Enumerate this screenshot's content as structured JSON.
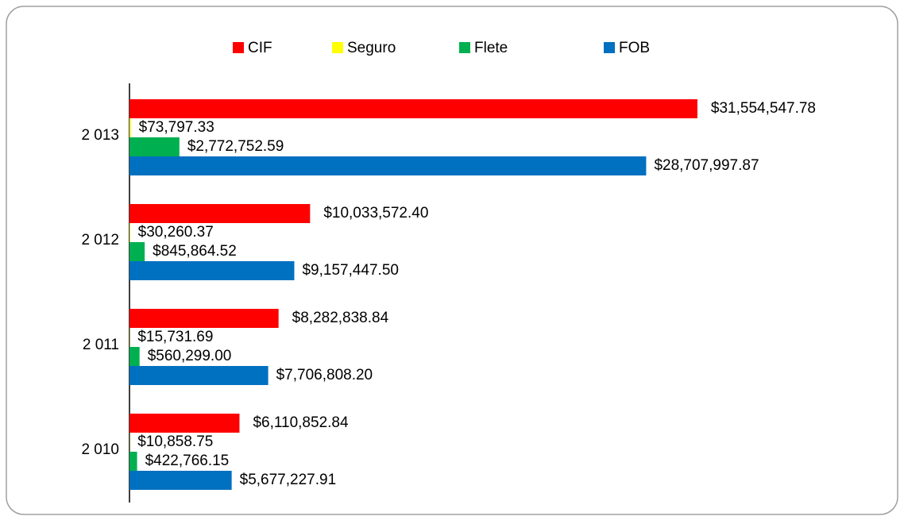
{
  "chart_data": {
    "type": "barh",
    "categories": [
      "2 013",
      "2 012",
      "2 011",
      "2 010"
    ],
    "series": [
      {
        "name": "CIF",
        "color": "#ff0000",
        "values": [
          31554547.78,
          10033572.4,
          8282838.84,
          6110852.84
        ],
        "value_labels": [
          "$31,554,547.78",
          "$10,033,572.40",
          "$8,282,838.84",
          "$6,110,852.84"
        ]
      },
      {
        "name": "Seguro",
        "color": "#ffff00",
        "values": [
          73797.33,
          30260.37,
          15731.69,
          10858.75
        ],
        "value_labels": [
          "$73,797.33",
          "$30,260.37",
          "$15,731.69",
          "$10,858.75"
        ]
      },
      {
        "name": "Flete",
        "color": "#00b050",
        "values": [
          2772752.59,
          845864.52,
          560299.0,
          422766.15
        ],
        "value_labels": [
          "$2,772,752.59",
          "$845,864.52",
          "$560,299.00",
          "$422,766.15"
        ]
      },
      {
        "name": "FOB",
        "color": "#0070c0",
        "values": [
          28707997.87,
          9157447.5,
          7706808.2,
          5677227.91
        ],
        "value_labels": [
          "$28,707,997.87",
          "$9,157,447.50",
          "$7,706,808.20",
          "$5,677,227.91"
        ]
      }
    ],
    "xlim": [
      0,
      35000000
    ],
    "legend": "top"
  }
}
